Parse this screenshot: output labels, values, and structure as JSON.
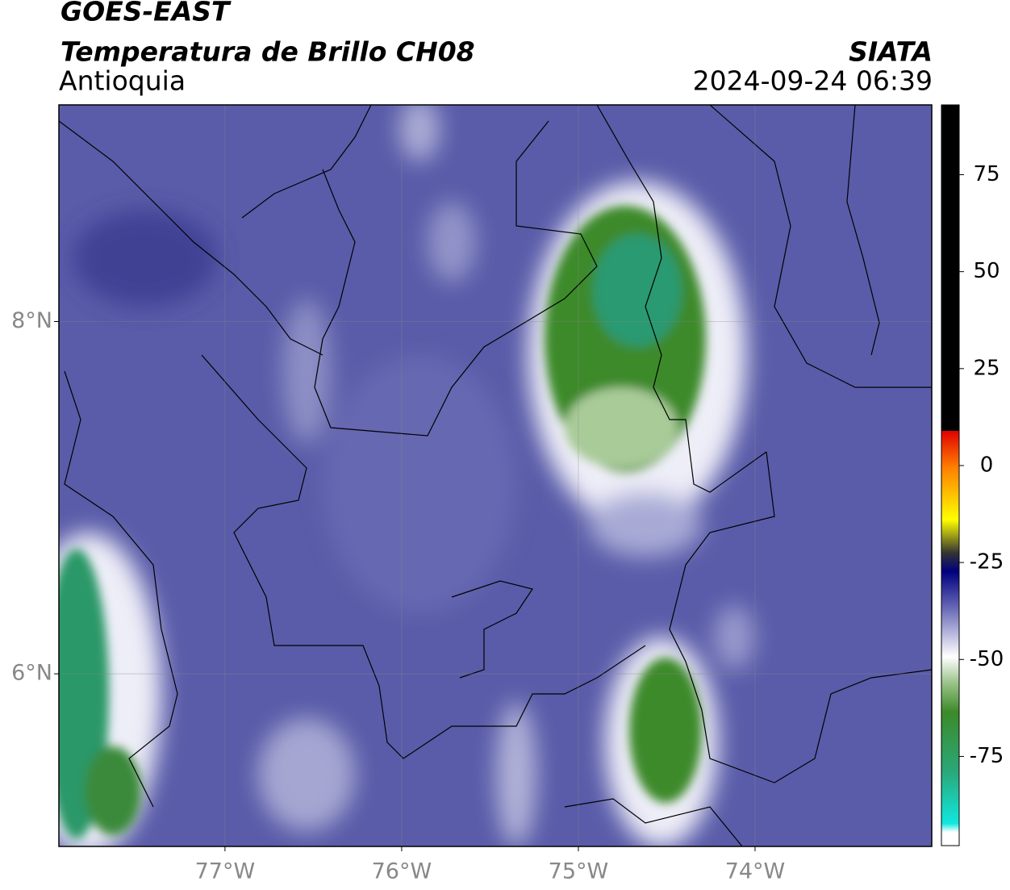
{
  "header": {
    "satellite": "GOES-EAST",
    "title": "Temperatura de Brillo CH08",
    "region": "Antioquia",
    "source": "SIATA",
    "datetime": "2024-09-24 06:39"
  },
  "map": {
    "xlim": [
      -77.94,
      -73.0
    ],
    "ylim": [
      5.02,
      9.23
    ],
    "xticks": [
      {
        "value": -77,
        "label": "77°W"
      },
      {
        "value": -76,
        "label": "76°W"
      },
      {
        "value": -75,
        "label": "75°W"
      },
      {
        "value": -74,
        "label": "74°W"
      }
    ],
    "yticks": [
      {
        "value": 8,
        "label": "8°N"
      },
      {
        "value": 6,
        "label": "6°N"
      }
    ],
    "grid": true
  },
  "colorbar": {
    "lim": [
      -98,
      93
    ],
    "ticks": [
      75,
      50,
      25,
      0,
      -25,
      -50,
      -75
    ]
  }
}
